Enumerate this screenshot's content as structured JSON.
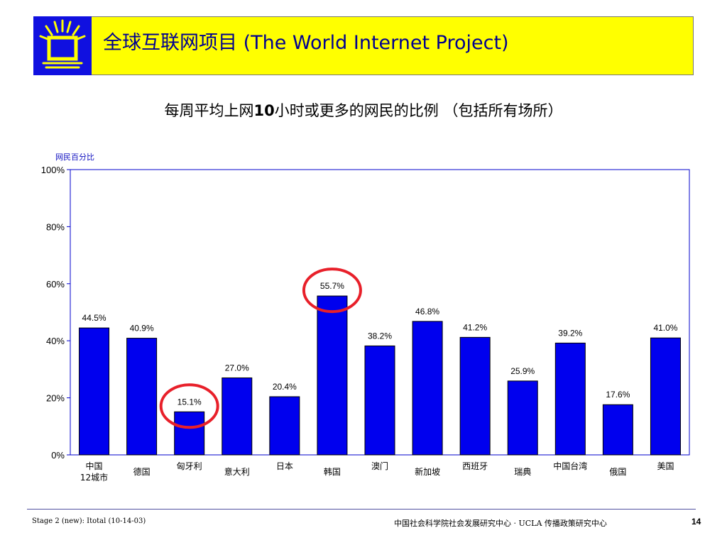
{
  "header": {
    "title": "全球互联网项目 (The World Internet Project)"
  },
  "subtitle": {
    "before": "每周平均上网",
    "number": "10",
    "after": "小时或更多的网民的比例 （包括所有场所）"
  },
  "chart_data": {
    "type": "bar",
    "ylabel": "网民百分比",
    "ylim": [
      0,
      100
    ],
    "yticks": [
      "0%",
      "20%",
      "40%",
      "60%",
      "80%",
      "100%"
    ],
    "bar_color": "#0000ee",
    "highlight_color": "#e8202a",
    "categories": [
      [
        "中国",
        "12城市"
      ],
      [
        "德国"
      ],
      [
        "匈牙利"
      ],
      [
        "意大利"
      ],
      [
        "日本"
      ],
      [
        "韩国"
      ],
      [
        "澳门"
      ],
      [
        "新加坡"
      ],
      [
        "西班牙"
      ],
      [
        "瑞典"
      ],
      [
        "中国台湾"
      ],
      [
        "俄国"
      ],
      [
        "美国"
      ]
    ],
    "values": [
      44.5,
      40.9,
      15.1,
      27.0,
      20.4,
      55.7,
      38.2,
      46.8,
      41.2,
      25.9,
      39.2,
      17.6,
      41.0
    ],
    "value_labels": [
      "44.5%",
      "40.9%",
      "15.1%",
      "27.0%",
      "20.4%",
      "55.7%",
      "38.2%",
      "46.8%",
      "41.2%",
      "25.9%",
      "39.2%",
      "17.6%",
      "41.0%"
    ],
    "highlighted": [
      "匈牙利",
      "韩国"
    ]
  },
  "footer": {
    "left": "Stage 2 (new): Itotal (10-14-03)",
    "center": "中国社会科学院社会发展研究中心 · UCLA 传播政策研究中心",
    "page": "14"
  }
}
